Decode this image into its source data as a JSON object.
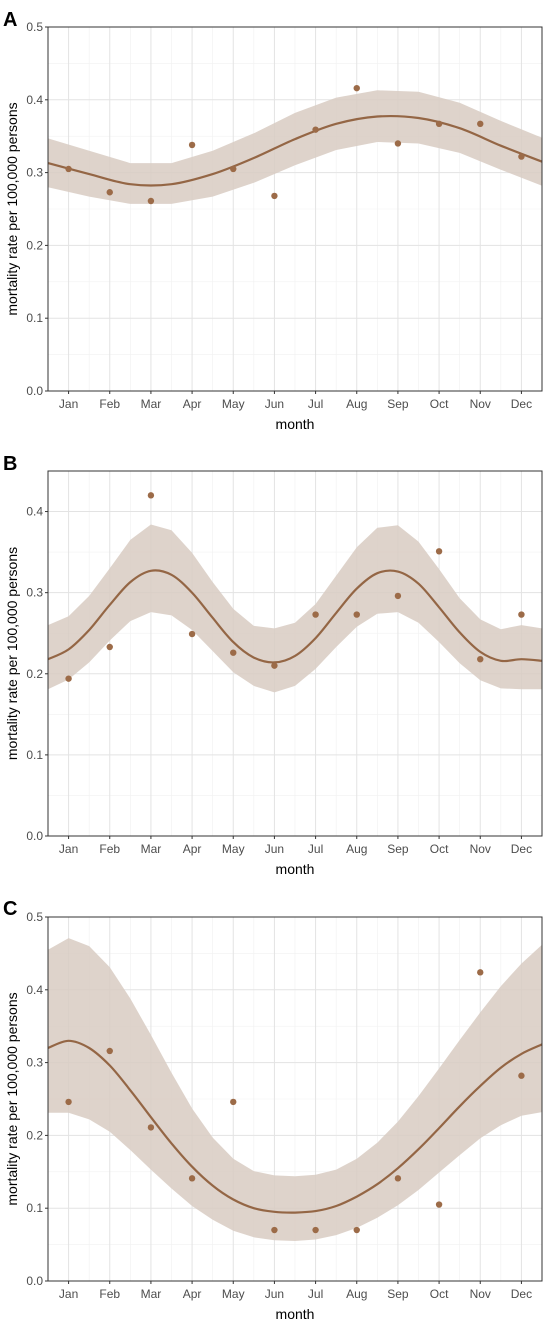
{
  "colors": {
    "point": "#9c6b48",
    "line": "#946645",
    "ribbon": "#d8cbc2"
  },
  "chart_data": [
    {
      "panel": "A",
      "type": "scatter",
      "xlabel": "month",
      "ylabel": "mortality rate per 100,000 persons",
      "categories": [
        "Jan",
        "Feb",
        "Mar",
        "Apr",
        "May",
        "Jun",
        "Jul",
        "Aug",
        "Sep",
        "Oct",
        "Nov",
        "Dec"
      ],
      "ylim": [
        0,
        0.5
      ],
      "yticks": [
        "0.0",
        "0.1",
        "0.2",
        "0.3",
        "0.4",
        "0.5"
      ],
      "grid": true,
      "points": [
        0.305,
        0.273,
        0.261,
        0.338,
        0.305,
        0.268,
        0.359,
        0.416,
        0.34,
        0.367,
        0.367,
        0.322
      ],
      "fit": {
        "x": [
          0.5,
          1.5,
          2.5,
          3.5,
          4.5,
          5.5,
          6.5,
          7.5,
          8.5,
          9.5,
          10.5,
          11.5,
          12.5
        ],
        "y": [
          0.313,
          0.298,
          0.284,
          0.284,
          0.298,
          0.32,
          0.346,
          0.367,
          0.377,
          0.375,
          0.361,
          0.337,
          0.315
        ],
        "lower": [
          0.28,
          0.267,
          0.257,
          0.257,
          0.267,
          0.286,
          0.31,
          0.331,
          0.342,
          0.34,
          0.327,
          0.304,
          0.282
        ],
        "upper": [
          0.347,
          0.33,
          0.313,
          0.313,
          0.33,
          0.354,
          0.382,
          0.403,
          0.413,
          0.411,
          0.396,
          0.371,
          0.348
        ]
      }
    },
    {
      "panel": "B",
      "type": "scatter",
      "xlabel": "month",
      "ylabel": "mortality rate per 100,000 persons",
      "categories": [
        "Jan",
        "Feb",
        "Mar",
        "Apr",
        "May",
        "Jun",
        "Jul",
        "Aug",
        "Sep",
        "Oct",
        "Nov",
        "Dec"
      ],
      "ylim": [
        0,
        0.45
      ],
      "yticks": [
        "0.0",
        "0.1",
        "0.2",
        "0.3",
        "0.4"
      ],
      "grid": true,
      "points": [
        0.194,
        0.233,
        0.42,
        0.249,
        0.226,
        0.21,
        0.273,
        0.273,
        0.296,
        0.351,
        0.218,
        0.273
      ],
      "fit": {
        "x": [
          0.5,
          1.0,
          1.5,
          2.0,
          2.5,
          3.0,
          3.5,
          4.0,
          4.5,
          5.0,
          5.5,
          6.0,
          6.5,
          7.0,
          7.5,
          8.0,
          8.5,
          9.0,
          9.5,
          10.0,
          10.5,
          11.0,
          11.5,
          12.0,
          12.5
        ],
        "y": [
          0.218,
          0.23,
          0.254,
          0.285,
          0.313,
          0.327,
          0.322,
          0.3,
          0.269,
          0.239,
          0.22,
          0.214,
          0.222,
          0.244,
          0.275,
          0.305,
          0.324,
          0.326,
          0.311,
          0.282,
          0.251,
          0.227,
          0.216,
          0.218,
          0.216
        ],
        "lower": [
          0.181,
          0.193,
          0.214,
          0.241,
          0.265,
          0.276,
          0.272,
          0.254,
          0.228,
          0.202,
          0.185,
          0.177,
          0.185,
          0.206,
          0.233,
          0.258,
          0.274,
          0.276,
          0.263,
          0.239,
          0.213,
          0.192,
          0.182,
          0.181,
          0.181
        ],
        "upper": [
          0.26,
          0.271,
          0.296,
          0.33,
          0.365,
          0.384,
          0.377,
          0.349,
          0.313,
          0.28,
          0.259,
          0.256,
          0.263,
          0.286,
          0.321,
          0.356,
          0.38,
          0.383,
          0.363,
          0.329,
          0.293,
          0.267,
          0.255,
          0.26,
          0.256
        ]
      }
    },
    {
      "panel": "C",
      "type": "scatter",
      "xlabel": "month",
      "ylabel": "mortality rate per 100,000 persons",
      "categories": [
        "Jan",
        "Feb",
        "Mar",
        "Apr",
        "May",
        "Jun",
        "Jul",
        "Aug",
        "Sep",
        "Oct",
        "Nov",
        "Dec"
      ],
      "ylim": [
        0,
        0.5
      ],
      "yticks": [
        "0.0",
        "0.1",
        "0.2",
        "0.3",
        "0.4",
        "0.5"
      ],
      "grid": true,
      "points": [
        0.246,
        0.316,
        0.211,
        0.141,
        0.246,
        0.07,
        0.07,
        0.07,
        0.141,
        0.105,
        0.424,
        0.282
      ],
      "fit": {
        "x": [
          0.5,
          1.0,
          1.5,
          2.0,
          2.5,
          3.0,
          3.5,
          4.0,
          4.5,
          5.0,
          5.5,
          6.0,
          6.5,
          7.0,
          7.5,
          8.0,
          8.5,
          9.0,
          9.5,
          10.0,
          10.5,
          11.0,
          11.5,
          12.0,
          12.5
        ],
        "y": [
          0.32,
          0.33,
          0.32,
          0.296,
          0.262,
          0.225,
          0.189,
          0.157,
          0.131,
          0.112,
          0.1,
          0.095,
          0.094,
          0.096,
          0.103,
          0.116,
          0.133,
          0.155,
          0.181,
          0.21,
          0.24,
          0.268,
          0.293,
          0.312,
          0.325
        ],
        "lower": [
          0.231,
          0.231,
          0.222,
          0.205,
          0.18,
          0.153,
          0.127,
          0.103,
          0.084,
          0.069,
          0.06,
          0.056,
          0.055,
          0.057,
          0.063,
          0.073,
          0.087,
          0.104,
          0.125,
          0.149,
          0.173,
          0.196,
          0.214,
          0.227,
          0.232
        ],
        "upper": [
          0.455,
          0.471,
          0.46,
          0.431,
          0.388,
          0.338,
          0.286,
          0.237,
          0.197,
          0.168,
          0.151,
          0.145,
          0.144,
          0.146,
          0.153,
          0.168,
          0.19,
          0.219,
          0.254,
          0.292,
          0.331,
          0.369,
          0.405,
          0.436,
          0.462
        ]
      }
    }
  ]
}
